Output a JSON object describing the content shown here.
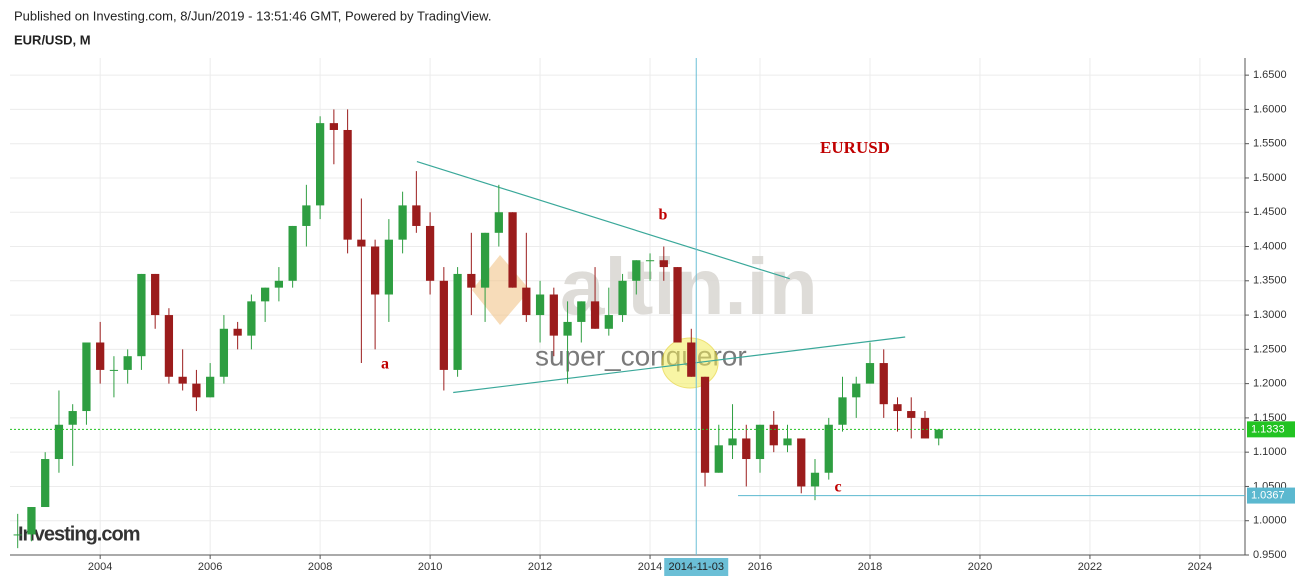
{
  "header": {
    "published": "Published on Investing.com, 8/Jun/2019 - 13:51:46 GMT, Powered by TradingView.",
    "symbol": "EUR/USD, M"
  },
  "chart_data": {
    "type": "candlestick",
    "x": [
      2002.5,
      2002.75,
      2003.0,
      2003.25,
      2003.5,
      2003.75,
      2004.0,
      2004.25,
      2004.5,
      2004.75,
      2005.0,
      2005.25,
      2005.5,
      2005.75,
      2006.0,
      2006.25,
      2006.5,
      2006.75,
      2007.0,
      2007.25,
      2007.5,
      2007.75,
      2008.0,
      2008.25,
      2008.5,
      2008.75,
      2009.0,
      2009.25,
      2009.5,
      2009.75,
      2010.0,
      2010.25,
      2010.5,
      2010.75,
      2011.0,
      2011.25,
      2011.5,
      2011.75,
      2012.0,
      2012.25,
      2012.5,
      2012.75,
      2013.0,
      2013.25,
      2013.5,
      2013.75,
      2014.0,
      2014.25,
      2014.5,
      2014.75,
      2015.0,
      2015.25,
      2015.5,
      2015.75,
      2016.0,
      2016.25,
      2016.5,
      2016.75,
      2017.0,
      2017.25,
      2017.5,
      2017.75,
      2018.0,
      2018.25,
      2018.5,
      2018.75,
      2019.0,
      2019.25
    ],
    "open": [
      0.98,
      0.98,
      1.02,
      1.09,
      1.14,
      1.16,
      1.26,
      1.22,
      1.22,
      1.24,
      1.36,
      1.3,
      1.21,
      1.2,
      1.18,
      1.21,
      1.28,
      1.27,
      1.32,
      1.34,
      1.35,
      1.43,
      1.46,
      1.58,
      1.57,
      1.41,
      1.4,
      1.33,
      1.41,
      1.46,
      1.43,
      1.35,
      1.22,
      1.36,
      1.34,
      1.42,
      1.45,
      1.34,
      1.3,
      1.33,
      1.27,
      1.29,
      1.32,
      1.28,
      1.3,
      1.35,
      1.38,
      1.38,
      1.37,
      1.26,
      1.21,
      1.07,
      1.11,
      1.12,
      1.09,
      1.14,
      1.11,
      1.12,
      1.05,
      1.07,
      1.14,
      1.18,
      1.2,
      1.23,
      1.17,
      1.16,
      1.15,
      1.12
    ],
    "high": [
      1.01,
      1.02,
      1.1,
      1.19,
      1.17,
      1.26,
      1.29,
      1.24,
      1.25,
      1.36,
      1.36,
      1.31,
      1.25,
      1.22,
      1.23,
      1.3,
      1.29,
      1.33,
      1.34,
      1.37,
      1.43,
      1.49,
      1.59,
      1.6,
      1.6,
      1.47,
      1.41,
      1.44,
      1.48,
      1.51,
      1.45,
      1.37,
      1.37,
      1.42,
      1.42,
      1.49,
      1.45,
      1.42,
      1.35,
      1.34,
      1.32,
      1.32,
      1.37,
      1.34,
      1.36,
      1.38,
      1.39,
      1.4,
      1.37,
      1.28,
      1.21,
      1.14,
      1.17,
      1.14,
      1.14,
      1.16,
      1.14,
      1.12,
      1.09,
      1.15,
      1.21,
      1.21,
      1.26,
      1.25,
      1.18,
      1.18,
      1.16,
      1.13
    ],
    "low": [
      0.96,
      0.97,
      1.02,
      1.07,
      1.08,
      1.14,
      1.2,
      1.18,
      1.2,
      1.22,
      1.28,
      1.2,
      1.19,
      1.16,
      1.18,
      1.2,
      1.25,
      1.25,
      1.29,
      1.32,
      1.34,
      1.4,
      1.44,
      1.52,
      1.39,
      1.23,
      1.25,
      1.29,
      1.39,
      1.42,
      1.33,
      1.19,
      1.21,
      1.3,
      1.29,
      1.4,
      1.34,
      1.29,
      1.26,
      1.24,
      1.2,
      1.26,
      1.28,
      1.27,
      1.29,
      1.33,
      1.35,
      1.35,
      1.26,
      1.21,
      1.05,
      1.07,
      1.09,
      1.05,
      1.07,
      1.1,
      1.1,
      1.04,
      1.03,
      1.06,
      1.13,
      1.15,
      1.2,
      1.15,
      1.13,
      1.12,
      1.12,
      1.11
    ],
    "close": [
      0.98,
      1.02,
      1.09,
      1.14,
      1.16,
      1.26,
      1.22,
      1.22,
      1.24,
      1.36,
      1.3,
      1.21,
      1.2,
      1.18,
      1.21,
      1.28,
      1.27,
      1.32,
      1.34,
      1.35,
      1.43,
      1.46,
      1.58,
      1.57,
      1.41,
      1.4,
      1.33,
      1.41,
      1.46,
      1.43,
      1.35,
      1.22,
      1.36,
      1.34,
      1.42,
      1.45,
      1.34,
      1.3,
      1.33,
      1.27,
      1.29,
      1.32,
      1.28,
      1.3,
      1.35,
      1.38,
      1.38,
      1.37,
      1.26,
      1.21,
      1.07,
      1.11,
      1.12,
      1.09,
      1.14,
      1.11,
      1.12,
      1.05,
      1.07,
      1.14,
      1.18,
      1.2,
      1.23,
      1.17,
      1.16,
      1.15,
      1.12,
      1.133
    ],
    "up_color": "#2e9e41",
    "down_color": "#9b1c1c",
    "xlim": [
      2002.36,
      2024.82
    ],
    "xticks": [
      2004,
      2006,
      2008,
      2010,
      2012,
      2014,
      2016,
      2018,
      2020,
      2022,
      2024
    ],
    "ylim": [
      0.95,
      1.675
    ],
    "yticks": [
      {
        "value": 0.95,
        "label": "0.9500"
      },
      {
        "value": 1.0,
        "label": "1.0000"
      },
      {
        "value": 1.05,
        "label": "1.0500"
      },
      {
        "value": 1.1,
        "label": "1.1000"
      },
      {
        "value": 1.15,
        "label": "1.1500"
      },
      {
        "value": 1.2,
        "label": "1.2000"
      },
      {
        "value": 1.25,
        "label": "1.2500"
      },
      {
        "value": 1.3,
        "label": "1.3000"
      },
      {
        "value": 1.35,
        "label": "1.3500"
      },
      {
        "value": 1.4,
        "label": "1.4000"
      },
      {
        "value": 1.45,
        "label": "1.4500"
      },
      {
        "value": 1.5,
        "label": "1.5000"
      },
      {
        "value": 1.55,
        "label": "1.5500"
      },
      {
        "value": 1.6,
        "label": "1.6000"
      },
      {
        "value": 1.65,
        "label": "1.6500"
      }
    ],
    "grid": true,
    "price_lines": [
      {
        "value": 1.1333,
        "color": "#22c322",
        "start": 2002.36
      },
      {
        "value": 1.0367,
        "color": "#5bb8cf",
        "start": 2015.6
      }
    ],
    "crosshair": {
      "x": 2014.84,
      "label": "2014-11-03"
    },
    "trendlines": [
      {
        "x": [
          2009.76,
          2016.54
        ],
        "y": [
          1.524,
          1.353
        ]
      },
      {
        "x": [
          2010.42,
          2018.64
        ],
        "y": [
          1.187,
          1.268
        ]
      }
    ],
    "annotations": [
      "EURUSD",
      "a",
      "b",
      "c"
    ],
    "watermarks": [
      "altin.in",
      "super_conqueror",
      "Investing.com"
    ]
  }
}
